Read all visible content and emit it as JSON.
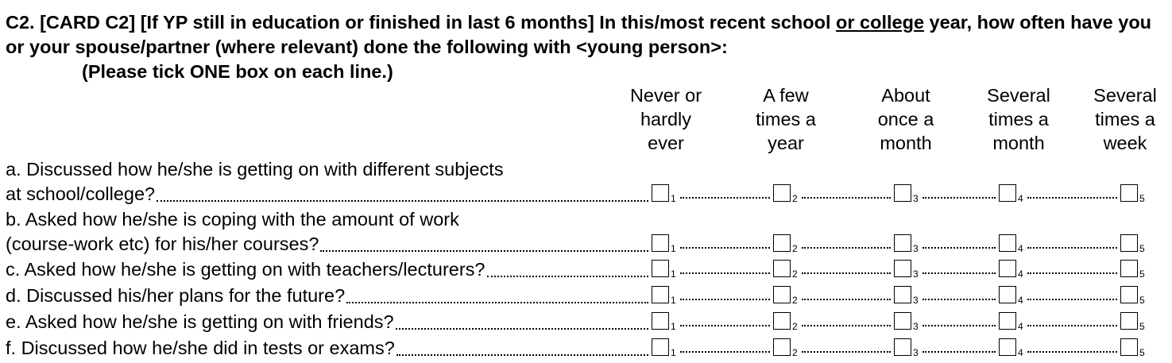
{
  "question": {
    "title_part1": "C2. [CARD C2] [If YP still in education or finished in last 6 months] In this/most recent school ",
    "title_underlined": "or college",
    "title_part2": " year, how often have you or your spouse/partner (where relevant) done the following with <young person>:",
    "instruction": "(Please tick ONE box on each line.)"
  },
  "columns": [
    {
      "lines": [
        "Never or",
        "hardly",
        "ever"
      ],
      "code": "1"
    },
    {
      "lines": [
        "A few",
        "times a",
        "year"
      ],
      "code": "2"
    },
    {
      "lines": [
        "About",
        "once a",
        "month"
      ],
      "code": "3"
    },
    {
      "lines": [
        "Several",
        "times a",
        "month"
      ],
      "code": "4"
    },
    {
      "lines": [
        "Several",
        "times a",
        "week"
      ],
      "code": "5"
    }
  ],
  "rows": [
    {
      "lines": [
        "a. Discussed how he/she is getting on with different subjects",
        "at school/college?"
      ]
    },
    {
      "lines": [
        "b. Asked how he/she is coping with the amount of work",
        "(course-work etc) for his/her courses?"
      ]
    },
    {
      "lines": [
        "c. Asked how he/she is getting on with teachers/lecturers?"
      ]
    },
    {
      "lines": [
        "d. Discussed his/her plans for the future?"
      ]
    },
    {
      "lines": [
        "e. Asked how he/she is getting on with friends?"
      ]
    },
    {
      "lines": [
        "f. Discussed how he/she did in tests or exams?"
      ]
    }
  ]
}
